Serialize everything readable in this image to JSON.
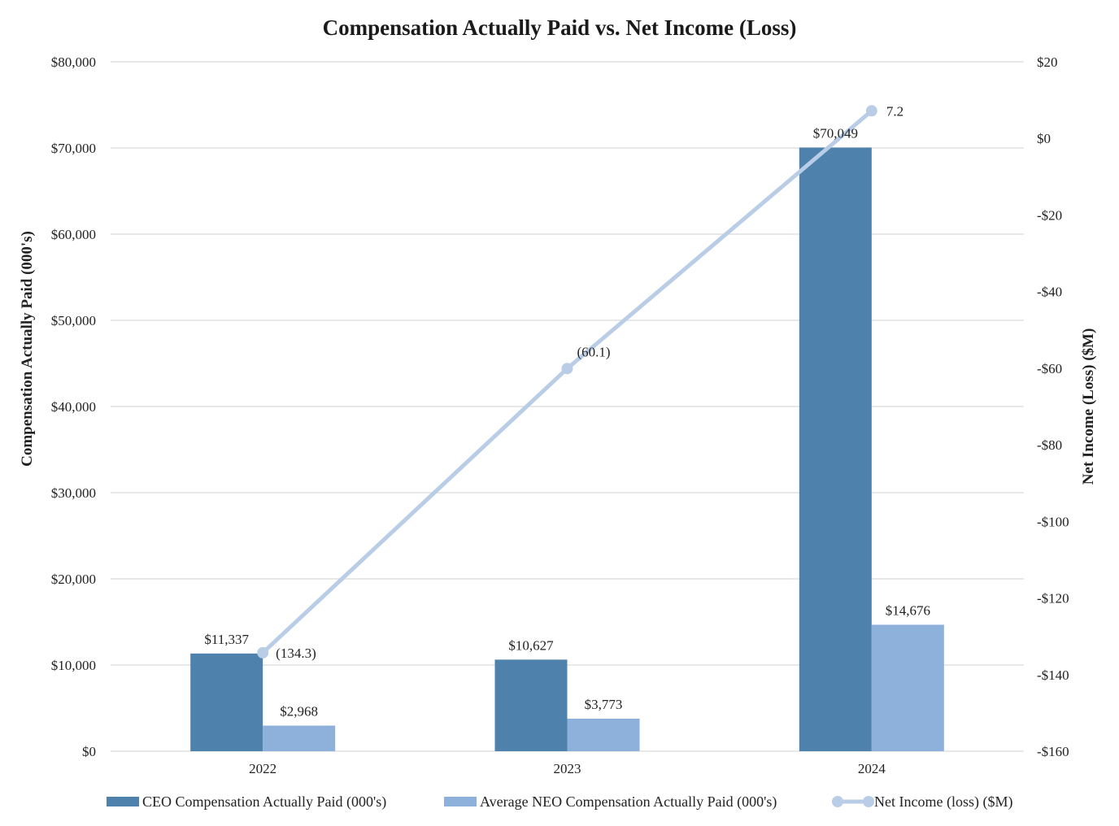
{
  "chart_data": {
    "type": "bar",
    "title": "Compensation Actually Paid vs. Net Income (Loss)",
    "categories": [
      "2022",
      "2023",
      "2024"
    ],
    "series": [
      {
        "name": "CEO Compensation Actually Paid (000's)",
        "type": "bar",
        "axis": "left",
        "color": "#4f81ad",
        "values": [
          11337,
          10627,
          70049
        ],
        "labels": [
          "$11,337",
          "$10,627",
          "$70,049"
        ]
      },
      {
        "name": "Average NEO Compensation Actually Paid (000's)",
        "type": "bar",
        "axis": "left",
        "color": "#8eb1db",
        "values": [
          2968,
          3773,
          14676
        ],
        "labels": [
          "$2,968",
          "$3,773",
          "$14,676"
        ]
      },
      {
        "name": "Net Income (loss) ($M)",
        "type": "line",
        "axis": "right",
        "color": "#b9cde6",
        "values": [
          -134.3,
          -60.1,
          7.2
        ],
        "labels": [
          "(134.3)",
          "(60.1)",
          "7.2"
        ]
      }
    ],
    "ylabel": "Compensation Actually Paid (000's)",
    "y2label": "Net Income (Loss) ($M)",
    "ylim": [
      0,
      80000
    ],
    "y2lim": [
      -160,
      20
    ],
    "yticks": [
      0,
      10000,
      20000,
      30000,
      40000,
      50000,
      60000,
      70000,
      80000
    ],
    "ytick_labels": [
      "$0",
      "$10,000",
      "$20,000",
      "$30,000",
      "$40,000",
      "$50,000",
      "$60,000",
      "$70,000",
      "$80,000"
    ],
    "y2ticks": [
      -160,
      -140,
      -120,
      -100,
      -80,
      -60,
      -40,
      -20,
      0,
      20
    ],
    "y2tick_labels": [
      "-$160",
      "-$140",
      "-$120",
      "-$100",
      "-$80",
      "-$60",
      "-$40",
      "-$20",
      "$0",
      "$20"
    ],
    "grid": true,
    "legend_position": "bottom"
  }
}
